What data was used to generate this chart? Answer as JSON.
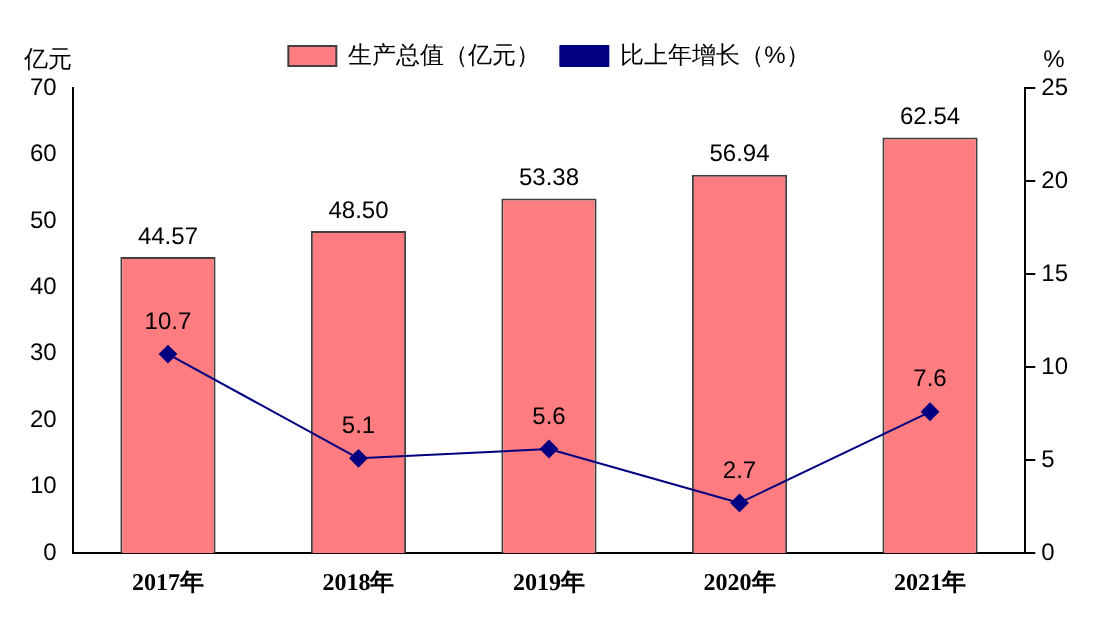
{
  "chart_data": {
    "type": "bar",
    "categories": [
      "2017年",
      "2018年",
      "2019年",
      "2020年",
      "2021年"
    ],
    "ylabel": "亿元",
    "y2label": "%",
    "series": [
      {
        "name": "生产总值（亿元）",
        "color": "#ff7c80",
        "values": [
          44.57,
          48.5,
          53.38,
          56.94,
          62.54
        ],
        "value_labels": [
          "44.57",
          "48.50",
          "53.38",
          "56.94",
          "62.54"
        ]
      },
      {
        "name": "比上年增长（%）",
        "type": "line",
        "axis": "y2",
        "color": "#000080",
        "marker": "diamond",
        "values": [
          10.7,
          5.1,
          5.6,
          2.7,
          7.6
        ],
        "value_labels": [
          "10.7",
          "5.1",
          "5.6",
          "2.7",
          "7.6"
        ]
      }
    ],
    "ylim": [
      0,
      70
    ],
    "yticks": [
      0,
      10,
      20,
      30,
      40,
      50,
      60,
      70
    ],
    "y2lim": [
      0,
      25
    ],
    "y2ticks": [
      0,
      5,
      10,
      15,
      20,
      25
    ],
    "grid": false,
    "legend": "top"
  }
}
